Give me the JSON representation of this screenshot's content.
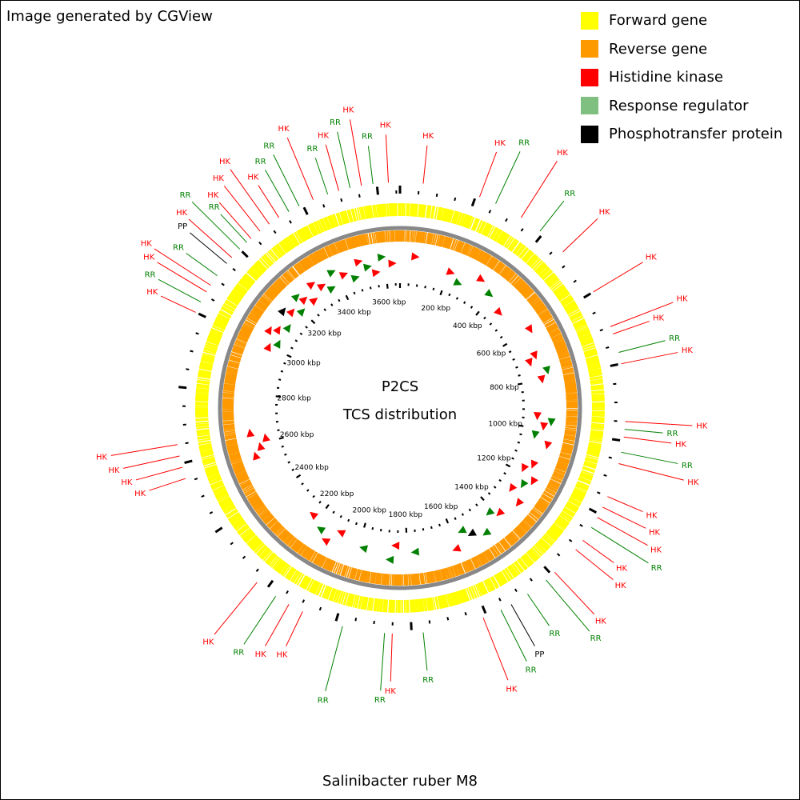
{
  "header": {
    "credit": "Image generated by CGView"
  },
  "legend": [
    {
      "label": "Forward gene",
      "color": "#ffff00"
    },
    {
      "label": "Reverse gene",
      "color": "#ff9900"
    },
    {
      "label": "Histidine kinase",
      "color": "#ff0000"
    },
    {
      "label": "Response regulator",
      "color": "#7fbf7f"
    },
    {
      "label": "Phosphotransfer protein",
      "color": "#000000"
    }
  ],
  "map": {
    "title": "P2CS",
    "subtitle": "TCS distribution",
    "genome_length_kbp": 3660,
    "colors": {
      "forward": "#ffff00",
      "reverse": "#ff9900",
      "HK": "#ff0000",
      "RR": "#008000",
      "PP": "#000000",
      "backbone": "#888888"
    },
    "scale_labels": [
      "200 kbp",
      "400 kbp",
      "600 kbp",
      "800 kbp",
      "1000 kbp",
      "1200 kbp",
      "1400 kbp",
      "1600 kbp",
      "1800 kbp",
      "2000 kbp",
      "2200 kbp",
      "2400 kbp",
      "2600 kbp",
      "2800 kbp",
      "3000 kbp",
      "3200 kbp",
      "3400 kbp",
      "3600 kbp"
    ],
    "features": [
      {
        "label": "HK",
        "type": "HK",
        "kbp": 60
      },
      {
        "label": "HK",
        "type": "HK",
        "kbp": 210
      },
      {
        "label": "RR",
        "type": "RR",
        "kbp": 255
      },
      {
        "label": "HK",
        "type": "HK",
        "kbp": 330
      },
      {
        "label": "RR",
        "type": "RR",
        "kbp": 390
      },
      {
        "label": "HK",
        "type": "HK",
        "kbp": 470
      },
      {
        "label": "HK",
        "type": "HK",
        "kbp": 600
      },
      {
        "label": "HK",
        "type": "HK",
        "kbp": 700
      },
      {
        "label": "HK",
        "type": "HK",
        "kbp": 720
      },
      {
        "label": "RR",
        "type": "RR",
        "kbp": 770
      },
      {
        "label": "HK",
        "type": "HK",
        "kbp": 800
      },
      {
        "label": "HK",
        "type": "HK",
        "kbp": 950
      },
      {
        "label": "RR",
        "type": "RR",
        "kbp": 970
      },
      {
        "label": "HK",
        "type": "HK",
        "kbp": 990
      },
      {
        "label": "RR",
        "type": "RR",
        "kbp": 1030
      },
      {
        "label": "HK",
        "type": "HK",
        "kbp": 1060
      },
      {
        "label": "HK",
        "type": "HK",
        "kbp": 1150
      },
      {
        "label": "HK",
        "type": "HK",
        "kbp": 1180
      },
      {
        "label": "HK",
        "type": "HK",
        "kbp": 1210
      },
      {
        "label": "RR",
        "type": "RR",
        "kbp": 1240
      },
      {
        "label": "HK",
        "type": "HK",
        "kbp": 1280
      },
      {
        "label": "HK",
        "type": "HK",
        "kbp": 1310
      },
      {
        "label": "HK",
        "type": "HK",
        "kbp": 1390
      },
      {
        "label": "RR",
        "type": "RR",
        "kbp": 1420
      },
      {
        "label": "RR",
        "type": "RR",
        "kbp": 1480
      },
      {
        "label": "PP",
        "type": "PP",
        "kbp": 1530
      },
      {
        "label": "RR",
        "type": "RR",
        "kbp": 1560
      },
      {
        "label": "HK",
        "type": "HK",
        "kbp": 1610
      },
      {
        "label": "RR",
        "type": "RR",
        "kbp": 1770
      },
      {
        "label": "HK",
        "type": "HK",
        "kbp": 1850
      },
      {
        "label": "RR",
        "type": "RR",
        "kbp": 1870
      },
      {
        "label": "RR",
        "type": "RR",
        "kbp": 1980
      },
      {
        "label": "HK",
        "type": "HK",
        "kbp": 2090
      },
      {
        "label": "HK",
        "type": "HK",
        "kbp": 2130
      },
      {
        "label": "RR",
        "type": "RR",
        "kbp": 2170
      },
      {
        "label": "HK",
        "type": "HK",
        "kbp": 2230
      },
      {
        "label": "HK",
        "type": "HK",
        "kbp": 2560
      },
      {
        "label": "HK",
        "type": "HK",
        "kbp": 2590
      },
      {
        "label": "HK",
        "type": "HK",
        "kbp": 2620
      },
      {
        "label": "HK",
        "type": "HK",
        "kbp": 2650
      },
      {
        "label": "HK",
        "type": "HK",
        "kbp": 3000
      },
      {
        "label": "RR",
        "type": "RR",
        "kbp": 3030
      },
      {
        "label": "HK",
        "type": "HK",
        "kbp": 3060
      },
      {
        "label": "HK",
        "type": "HK",
        "kbp": 3080
      },
      {
        "label": "RR",
        "type": "RR",
        "kbp": 3110
      },
      {
        "label": "PP",
        "type": "PP",
        "kbp": 3150
      },
      {
        "label": "HK",
        "type": "HK",
        "kbp": 3170
      },
      {
        "label": "RR",
        "type": "RR",
        "kbp": 3200
      },
      {
        "label": "RR",
        "type": "RR",
        "kbp": 3225
      },
      {
        "label": "HK",
        "type": "HK",
        "kbp": 3240
      },
      {
        "label": "HK",
        "type": "HK",
        "kbp": 3270
      },
      {
        "label": "HK",
        "type": "HK",
        "kbp": 3300
      },
      {
        "label": "HK",
        "type": "HK",
        "kbp": 3330
      },
      {
        "label": "RR",
        "type": "RR",
        "kbp": 3360
      },
      {
        "label": "RR",
        "type": "RR",
        "kbp": 3390
      },
      {
        "label": "HK",
        "type": "HK",
        "kbp": 3430
      },
      {
        "label": "RR",
        "type": "RR",
        "kbp": 3470
      },
      {
        "label": "HK",
        "type": "HK",
        "kbp": 3500
      },
      {
        "label": "RR",
        "type": "RR",
        "kbp": 3530
      },
      {
        "label": "HK",
        "type": "HK",
        "kbp": 3560
      },
      {
        "label": "RR",
        "type": "RR",
        "kbp": 3590
      },
      {
        "label": "HK",
        "type": "HK",
        "kbp": 3630
      }
    ]
  },
  "footer": {
    "organism": "Salinibacter ruber M8"
  }
}
